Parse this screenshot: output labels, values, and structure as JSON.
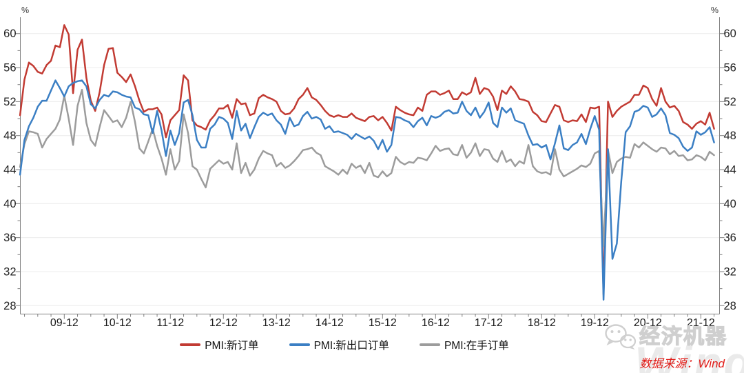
{
  "chart_data": {
    "type": "line",
    "title": "",
    "unit_label": "%",
    "x_start_month": "2009-02",
    "x_frequency": "monthly",
    "x_tick_labels": [
      "09-12",
      "10-12",
      "11-12",
      "12-12",
      "13-12",
      "14-12",
      "15-12",
      "16-12",
      "17-12",
      "18-12",
      "19-12",
      "20-12",
      "21-12"
    ],
    "y_axis": {
      "tick_min": 28,
      "tick_max": 60,
      "major_step": 4,
      "minor_step": 2,
      "display_range": [
        27,
        62
      ],
      "mirrored_right": true,
      "unit": "%"
    },
    "grid": "horizontal-major-only",
    "legend_position": "bottom-center",
    "series": [
      {
        "name": "PMI:新订单",
        "color": "#C23B33",
        "values": [
          50.4,
          54.6,
          56.6,
          56.2,
          55.5,
          55.3,
          56.3,
          56.8,
          58.6,
          58.4,
          61.0,
          59.9,
          53.0,
          58.1,
          59.3,
          54.8,
          52.1,
          50.9,
          53.1,
          56.3,
          58.2,
          58.3,
          55.4,
          54.9,
          54.3,
          55.2,
          53.8,
          52.1,
          50.8,
          51.1,
          51.1,
          51.3,
          50.5,
          47.8,
          49.8,
          50.4,
          51.0,
          55.1,
          54.5,
          49.8,
          49.2,
          49.0,
          48.7,
          49.8,
          50.4,
          51.2,
          51.2,
          51.6,
          50.1,
          52.3,
          51.7,
          51.8,
          50.4,
          50.6,
          52.4,
          52.8,
          52.5,
          52.3,
          52.0,
          50.9,
          50.5,
          50.6,
          51.2,
          52.3,
          52.8,
          53.6,
          52.5,
          52.2,
          51.6,
          50.9,
          50.4,
          50.2,
          50.4,
          50.2,
          50.2,
          50.6,
          50.1,
          49.9,
          49.7,
          50.2,
          50.3,
          49.8,
          50.2,
          49.5,
          48.6,
          51.4,
          51.0,
          50.7,
          50.5,
          50.4,
          51.3,
          50.9,
          52.8,
          53.2,
          53.2,
          52.8,
          53.0,
          53.3,
          52.3,
          52.3,
          53.1,
          52.8,
          53.1,
          54.8,
          52.9,
          53.6,
          53.4,
          52.6,
          51.0,
          53.3,
          52.9,
          53.8,
          53.2,
          52.3,
          52.2,
          52.0,
          50.8,
          50.4,
          49.7,
          49.6,
          50.6,
          51.6,
          51.4,
          49.8,
          49.6,
          49.8,
          49.7,
          50.5,
          49.6,
          51.3,
          51.2,
          51.4,
          29.3,
          52.0,
          50.2,
          50.9,
          51.4,
          51.7,
          52.0,
          52.8,
          52.8,
          53.9,
          53.6,
          52.3,
          51.5,
          53.6,
          52.0,
          51.3,
          51.5,
          50.9,
          49.6,
          49.3,
          48.8,
          49.4,
          49.7,
          49.3,
          50.7,
          48.8
        ]
      },
      {
        "name": "PMI:新出口订单",
        "color": "#3B7FC4",
        "values": [
          43.4,
          47.5,
          49.1,
          50.1,
          51.4,
          52.1,
          52.1,
          53.3,
          54.5,
          53.6,
          52.6,
          53.8,
          54.2,
          54.4,
          54.5,
          53.8,
          51.7,
          51.2,
          52.2,
          52.8,
          52.6,
          53.2,
          53.1,
          52.8,
          52.6,
          52.5,
          51.3,
          51.1,
          50.5,
          50.4,
          48.3,
          50.9,
          48.6,
          45.6,
          48.6,
          46.9,
          48.3,
          51.9,
          52.2,
          50.4,
          47.5,
          46.6,
          46.6,
          48.8,
          49.3,
          50.2,
          50.0,
          49.5,
          47.6,
          50.9,
          48.6,
          49.4,
          47.7,
          49.0,
          50.2,
          50.7,
          50.4,
          50.6,
          49.8,
          49.3,
          48.2,
          50.1,
          49.1,
          49.3,
          50.3,
          50.8,
          50.0,
          50.2,
          49.9,
          48.8,
          49.1,
          48.4,
          48.5,
          48.3,
          48.1,
          47.6,
          48.2,
          47.9,
          47.6,
          47.9,
          47.4,
          46.4,
          47.5,
          46.1,
          46.9,
          50.2,
          50.1,
          49.8,
          49.6,
          49.0,
          49.7,
          50.1,
          49.2,
          50.3,
          50.1,
          50.3,
          50.8,
          51.0,
          50.6,
          50.7,
          52.0,
          50.9,
          50.4,
          51.3,
          50.1,
          50.8,
          51.9,
          49.5,
          49.0,
          51.3,
          50.7,
          51.2,
          49.8,
          49.6,
          49.4,
          48.0,
          46.9,
          47.0,
          46.6,
          46.9,
          45.2,
          47.1,
          49.2,
          46.5,
          46.3,
          46.9,
          47.2,
          48.2,
          47.0,
          48.8,
          50.3,
          48.7,
          28.7,
          46.4,
          33.5,
          35.3,
          42.6,
          48.4,
          49.1,
          50.8,
          51.0,
          51.5,
          51.3,
          50.2,
          50.5,
          51.2,
          50.4,
          48.3,
          48.1,
          47.7,
          46.7,
          46.2,
          46.6,
          48.5,
          48.1,
          48.4,
          49.0,
          47.2
        ]
      },
      {
        "name": "PMI:在手订单",
        "color": "#9C9C9C",
        "values": [
          44.3,
          47.0,
          48.5,
          48.4,
          48.2,
          46.6,
          47.6,
          48.2,
          48.8,
          49.9,
          52.7,
          50.0,
          46.9,
          51.5,
          53.4,
          49.5,
          47.5,
          46.8,
          49.0,
          51.0,
          50.3,
          49.6,
          49.8,
          49.0,
          50.1,
          52.0,
          49.6,
          46.5,
          45.9,
          47.3,
          48.8,
          46.8,
          45.3,
          43.4,
          46.4,
          44.0,
          45.0,
          50.5,
          48.3,
          44.4,
          44.0,
          42.9,
          41.9,
          44.1,
          44.6,
          45.1,
          44.7,
          44.9,
          44.0,
          47.1,
          43.6,
          44.8,
          43.3,
          44.0,
          45.3,
          46.2,
          45.9,
          45.7,
          44.4,
          44.8,
          44.2,
          44.5,
          45.0,
          45.6,
          46.3,
          46.4,
          46.6,
          46.0,
          45.7,
          44.4,
          44.1,
          43.8,
          43.4,
          44.0,
          43.5,
          44.7,
          44.2,
          44.5,
          43.6,
          44.8,
          43.3,
          43.1,
          43.8,
          43.2,
          43.6,
          45.5,
          44.9,
          44.6,
          44.9,
          44.8,
          45.4,
          45.3,
          45.1,
          45.9,
          46.8,
          46.2,
          46.4,
          46.5,
          45.8,
          45.7,
          46.9,
          45.4,
          46.0,
          47.1,
          45.6,
          46.4,
          46.3,
          45.3,
          44.9,
          46.2,
          44.9,
          45.2,
          44.4,
          45.0,
          44.7,
          46.9,
          44.4,
          43.8,
          43.6,
          43.7,
          43.4,
          46.4,
          44.0,
          43.2,
          43.5,
          43.8,
          44.1,
          44.5,
          44.3,
          44.7,
          45.9,
          46.2,
          35.0,
          46.3,
          43.6,
          44.9,
          45.3,
          45.5,
          45.4,
          47.0,
          46.6,
          47.2,
          46.8,
          46.4,
          46.1,
          46.6,
          46.5,
          45.8,
          46.2,
          45.6,
          45.7,
          45.1,
          45.2,
          45.7,
          45.5,
          45.1,
          46.1,
          45.7
        ]
      }
    ]
  },
  "watermark": {
    "brand": "经济机器",
    "wind": "Wind"
  },
  "source": {
    "text": "数据来源：Wind",
    "color": "#E11B17"
  }
}
